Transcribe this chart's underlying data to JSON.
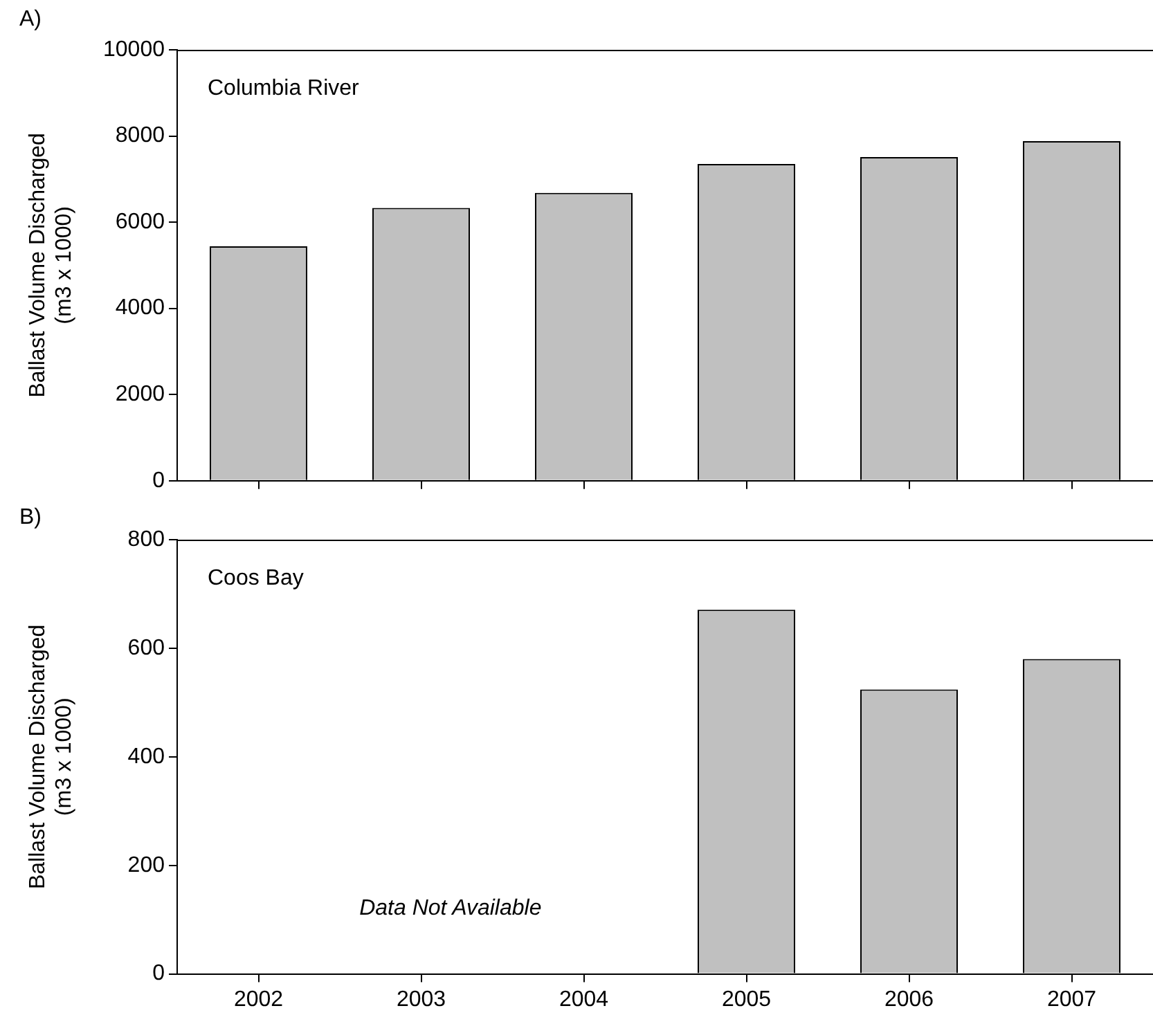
{
  "chart_data": [
    {
      "type": "bar",
      "title": "A)",
      "ylabel": "Ballast Volume Discharged\n(m3 x 1000)",
      "categories": [
        "2002",
        "2003",
        "2004",
        "2005",
        "2006",
        "2007"
      ],
      "values": [
        5440,
        6330,
        6680,
        7350,
        7510,
        7880
      ],
      "color": "#c0c0c0",
      "ylim": [
        0,
        10000
      ],
      "yticks": [
        0,
        2000,
        4000,
        6000,
        8000,
        10000
      ],
      "grid": false,
      "tick_labels": "y",
      "annotations": [
        "Columbia River"
      ]
    },
    {
      "type": "bar",
      "title": "B)",
      "ylabel": "Ballast Volume Discharged\n(m3 x 1000)",
      "categories": [
        "2002",
        "2003",
        "2004",
        "2005",
        "2006",
        "2007"
      ],
      "values": [
        null,
        null,
        null,
        671,
        524,
        580
      ],
      "color": "#c0c0c0",
      "ylim": [
        0,
        800
      ],
      "yticks": [
        0,
        200,
        400,
        600,
        800
      ],
      "grid": false,
      "annotations": [
        "Coos Bay",
        "Data Not Available"
      ]
    }
  ]
}
